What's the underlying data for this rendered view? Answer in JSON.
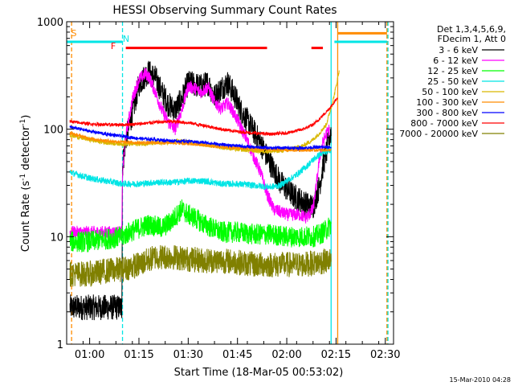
{
  "chart_data": {
    "type": "line",
    "title": "HESSI Observing Summary Count Rates",
    "xlabel": "Start Time (18-Mar-05 00:53:02)",
    "ylabel_main": "Count Rate (s",
    "ylabel_sup1": "-1",
    "ylabel_mid": " detector",
    "ylabel_sup2": "-1",
    "ylabel_end": ")",
    "y_scale": "log",
    "ylim": [
      1,
      1000
    ],
    "xlim_minutes": [
      53.0,
      152.5
    ],
    "x_ticks": [
      {
        "label": "01:00",
        "minutes": 60
      },
      {
        "label": "01:15",
        "minutes": 75
      },
      {
        "label": "01:30",
        "minutes": 90
      },
      {
        "label": "01:45",
        "minutes": 105
      },
      {
        "label": "02:00",
        "minutes": 120
      },
      {
        "label": "02:15",
        "minutes": 135
      },
      {
        "label": "02:30",
        "minutes": 150
      }
    ],
    "y_ticks": [
      {
        "label": "1",
        "value": 1
      },
      {
        "label": "10",
        "value": 10
      },
      {
        "label": "100",
        "value": 100
      },
      {
        "label": "1000",
        "value": 1000
      }
    ],
    "legend": {
      "header": [
        "Det 1,3,4,5,6,9,",
        "FDecim 1, Att 0"
      ],
      "position": "right"
    },
    "flags": [
      {
        "label": "S",
        "color": "#ff8c00"
      },
      {
        "label": "N",
        "color": "#00e5e5"
      },
      {
        "label": "F",
        "color": "#ff0000"
      }
    ],
    "flag_bars": [
      {
        "name": "saa",
        "color": "#ff8c00",
        "value": 780,
        "start": 135.5,
        "end": 150.5
      },
      {
        "name": "night",
        "color": "#00e5e5",
        "value": 650,
        "start": 53,
        "end": 70
      },
      {
        "name": "night",
        "color": "#00e5e5",
        "value": 650,
        "start": 134.5,
        "end": 150.5
      },
      {
        "name": "flare",
        "color": "#ff0000",
        "value": 570,
        "start": 71,
        "end": 114
      },
      {
        "name": "flare",
        "color": "#ff0000",
        "value": 570,
        "start": 127.5,
        "end": 131
      }
    ],
    "flag_lines": [
      {
        "minutes": 54.5,
        "color": "#ff8c00",
        "dashed": true
      },
      {
        "minutes": 70.0,
        "color": "#00e5e5",
        "dashed": true
      },
      {
        "minutes": 133.5,
        "color": "#00e5e5",
        "dashed": false
      },
      {
        "minutes": 135.5,
        "color": "#ff8c00",
        "dashed": false
      },
      {
        "minutes": 150.5,
        "color": "#ff8c00",
        "dashed": true
      },
      {
        "minutes": 150.8,
        "color": "#00e5e5",
        "dashed": true
      }
    ],
    "series": [
      {
        "name": "3 - 6 keV",
        "color": "#000000",
        "noise": 0.12,
        "x": [
          54,
          69.8,
          70,
          71,
          73,
          75,
          77,
          78,
          80,
          82,
          84,
          86,
          88,
          90,
          92,
          94,
          96,
          98,
          100,
          102,
          104,
          106,
          108,
          110,
          112,
          114,
          116,
          118,
          120,
          122,
          124,
          126,
          128,
          130,
          131,
          132,
          133,
          133.5
        ],
        "y": [
          2.2,
          2.2,
          45,
          80,
          140,
          260,
          320,
          340,
          300,
          220,
          170,
          150,
          190,
          270,
          260,
          250,
          270,
          200,
          240,
          270,
          210,
          150,
          120,
          95,
          75,
          55,
          42,
          32,
          28,
          24,
          22,
          20,
          19,
          30,
          45,
          60,
          85,
          95
        ]
      },
      {
        "name": "6 - 12 keV",
        "color": "#ff00ff",
        "noise": 0.06,
        "x": [
          54,
          69.8,
          70,
          71,
          73,
          75,
          77,
          78,
          80,
          82,
          84,
          86,
          88,
          90,
          92,
          94,
          96,
          98,
          100,
          102,
          104,
          106,
          108,
          110,
          112,
          114,
          116,
          118,
          120,
          122,
          124,
          126,
          128,
          129,
          130,
          131,
          132,
          133
        ],
        "y": [
          11,
          11,
          40,
          85,
          190,
          290,
          330,
          310,
          220,
          150,
          115,
          100,
          150,
          250,
          240,
          220,
          250,
          180,
          155,
          175,
          140,
          105,
          78,
          55,
          40,
          25,
          18,
          17,
          16,
          16,
          16,
          15,
          18,
          30,
          55,
          75,
          90,
          100
        ]
      },
      {
        "name": "12 - 25 keV",
        "color": "#00ff00",
        "noise": 0.1,
        "x": [
          54,
          60,
          65,
          70,
          72,
          75,
          78,
          80,
          82,
          85,
          88,
          90,
          92,
          95,
          100,
          105,
          110,
          115,
          120,
          125,
          128,
          130,
          132,
          133,
          133.5
        ],
        "y": [
          9,
          9,
          9.5,
          10,
          11,
          12,
          13,
          12.5,
          12,
          14,
          18,
          16,
          15,
          13,
          11,
          11,
          10.5,
          10.5,
          10,
          10,
          10,
          10.5,
          11.5,
          12.5,
          13
        ]
      },
      {
        "name": "25 - 50 keV",
        "color": "#00e5e5",
        "noise": 0.03,
        "x": [
          54,
          56,
          60,
          65,
          70,
          75,
          80,
          85,
          90,
          95,
          100,
          105,
          110,
          115,
          118,
          120,
          122,
          124,
          126,
          128,
          130,
          132,
          133,
          133.5
        ],
        "y": [
          40,
          38,
          35,
          33,
          31,
          31,
          32,
          32,
          33,
          33,
          31,
          31,
          30,
          29,
          30,
          33,
          36,
          40,
          45,
          52,
          58,
          62,
          64,
          65
        ]
      },
      {
        "name": "50 - 100 keV",
        "color": "#d9b800",
        "noise": 0.02,
        "x": [
          54,
          60,
          65,
          70,
          75,
          80,
          85,
          88,
          90,
          95,
          100,
          105,
          110,
          115,
          120,
          125,
          128,
          130,
          132,
          133,
          134,
          135,
          136
        ],
        "y": [
          88,
          80,
          75,
          73,
          73,
          74,
          76,
          78,
          76,
          72,
          68,
          65,
          63,
          62,
          64,
          70,
          80,
          92,
          110,
          140,
          180,
          250,
          360
        ]
      },
      {
        "name": "100 - 300 keV",
        "color": "#ff8c00",
        "noise": 0.015,
        "x": [
          54,
          60,
          65,
          70,
          75,
          80,
          85,
          90,
          95,
          100,
          105,
          110,
          115,
          120,
          125,
          130,
          133.5
        ],
        "y": [
          92,
          82,
          78,
          76,
          75,
          75,
          75,
          73,
          71,
          68,
          67,
          66,
          65,
          64,
          64,
          64,
          64
        ]
      },
      {
        "name": "300 - 800 keV",
        "color": "#0000ff",
        "noise": 0.015,
        "x": [
          54,
          60,
          65,
          70,
          75,
          80,
          85,
          90,
          95,
          100,
          105,
          110,
          115,
          120,
          125,
          130,
          133.5
        ],
        "y": [
          105,
          96,
          90,
          86,
          82,
          80,
          78,
          77,
          75,
          72,
          70,
          68,
          67,
          67,
          67,
          68,
          68
        ]
      },
      {
        "name": "800 - 7000 keV",
        "color": "#ff0000",
        "noise": 0.015,
        "x": [
          54,
          60,
          65,
          70,
          75,
          80,
          85,
          90,
          95,
          100,
          105,
          110,
          115,
          120,
          125,
          128,
          130,
          132,
          134,
          135.5
        ],
        "y": [
          118,
          112,
          110,
          110,
          112,
          116,
          118,
          115,
          108,
          100,
          95,
          92,
          90,
          92,
          100,
          110,
          125,
          145,
          170,
          200
        ]
      },
      {
        "name": "7000 - 20000 keV",
        "color": "#808000",
        "noise": 0.12,
        "x": [
          54,
          60,
          65,
          70,
          75,
          80,
          85,
          90,
          95,
          100,
          105,
          110,
          115,
          120,
          125,
          130,
          133.5
        ],
        "y": [
          4.5,
          4.5,
          4.8,
          5,
          5.5,
          6.5,
          6.5,
          6.2,
          6,
          6,
          5.8,
          5.5,
          5.5,
          5.5,
          5.5,
          5.8,
          6
        ]
      }
    ]
  },
  "footer": {
    "timestamp": "15-Mar-2010 04:28"
  }
}
